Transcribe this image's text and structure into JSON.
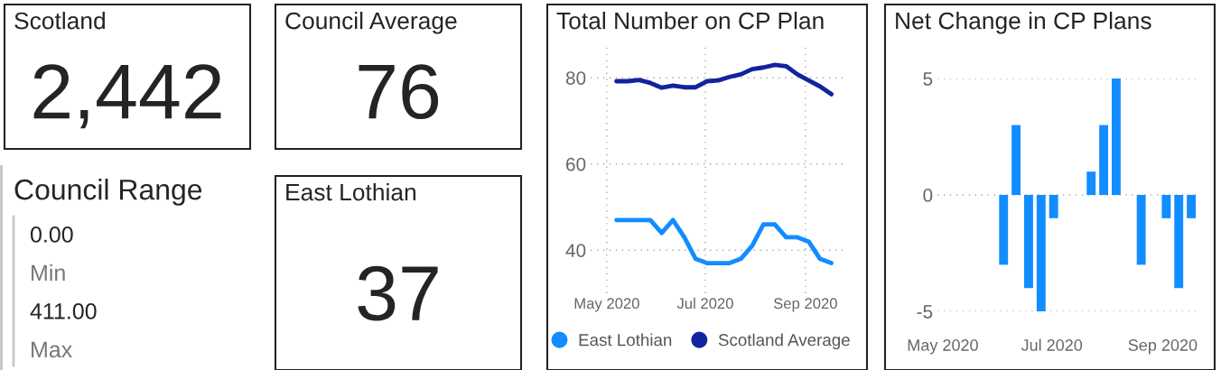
{
  "chart_data": [
    {
      "type": "other",
      "title": "Scotland",
      "annotations": [
        "2,442"
      ]
    },
    {
      "type": "other",
      "title": "Council Average",
      "annotations": [
        "76"
      ]
    },
    {
      "type": "other",
      "title": "Council Range",
      "annotations": [
        "0.00",
        "Min",
        "411.00",
        "Max"
      ]
    },
    {
      "type": "other",
      "title": "East Lothian",
      "annotations": [
        "37"
      ]
    },
    {
      "type": "line",
      "title": "Total Number on CP Plan",
      "x": [
        "2020-05-07",
        "2020-05-14",
        "2020-05-21",
        "2020-05-28",
        "2020-06-04",
        "2020-06-11",
        "2020-06-18",
        "2020-06-25",
        "2020-07-02",
        "2020-07-09",
        "2020-07-16",
        "2020-07-23",
        "2020-07-30",
        "2020-08-06",
        "2020-08-13",
        "2020-08-20",
        "2020-08-27",
        "2020-09-03",
        "2020-09-10",
        "2020-09-17"
      ],
      "series": [
        {
          "name": "East Lothian",
          "color": "#118dff",
          "values": [
            47,
            47,
            47,
            47,
            44,
            47,
            43,
            38,
            37,
            37,
            37,
            38,
            41,
            46,
            46,
            43,
            43,
            42,
            38,
            37
          ]
        },
        {
          "name": "Scotland Average",
          "color": "#12239e",
          "values": [
            79.2,
            79.2,
            79.5,
            78.8,
            77.7,
            78.2,
            77.8,
            77.8,
            79.2,
            79.4,
            80.2,
            80.8,
            82.0,
            82.4,
            83.0,
            82.7,
            80.8,
            79.4,
            78.0,
            76.2
          ]
        }
      ],
      "xlim": [
        "2020-04-21",
        "2020-09-24"
      ],
      "xticks": [
        {
          "value": "2020-05-01",
          "label": "May 2020"
        },
        {
          "value": "2020-07-01",
          "label": "Jul 2020"
        },
        {
          "value": "2020-09-01",
          "label": "Sep 2020"
        }
      ],
      "ylim": [
        30,
        88
      ],
      "yticks": [
        40,
        60,
        80
      ],
      "grid": true,
      "legend": "bottom",
      "marker": "none",
      "line_style": "solid"
    },
    {
      "type": "bar",
      "title": "Net Change in CP Plans",
      "x": [
        "2020-06-04",
        "2020-06-11",
        "2020-06-18",
        "2020-06-25",
        "2020-07-02",
        "2020-07-23",
        "2020-07-30",
        "2020-08-06",
        "2020-08-20",
        "2020-09-03",
        "2020-09-10",
        "2020-09-17"
      ],
      "values": [
        -3,
        3,
        -4,
        -5,
        -1,
        1,
        3,
        5,
        -3,
        -1,
        -4,
        -1
      ],
      "color": "#118dff",
      "xlim": [
        "2020-04-28",
        "2020-09-21"
      ],
      "xticks": [
        {
          "value": "2020-05-01",
          "label": "May 2020"
        },
        {
          "value": "2020-07-01",
          "label": "Jul 2020"
        },
        {
          "value": "2020-09-01",
          "label": "Sep 2020"
        }
      ],
      "ylim": [
        -5,
        5
      ],
      "yticks": [
        -5,
        0,
        5
      ],
      "grid": "y"
    }
  ]
}
